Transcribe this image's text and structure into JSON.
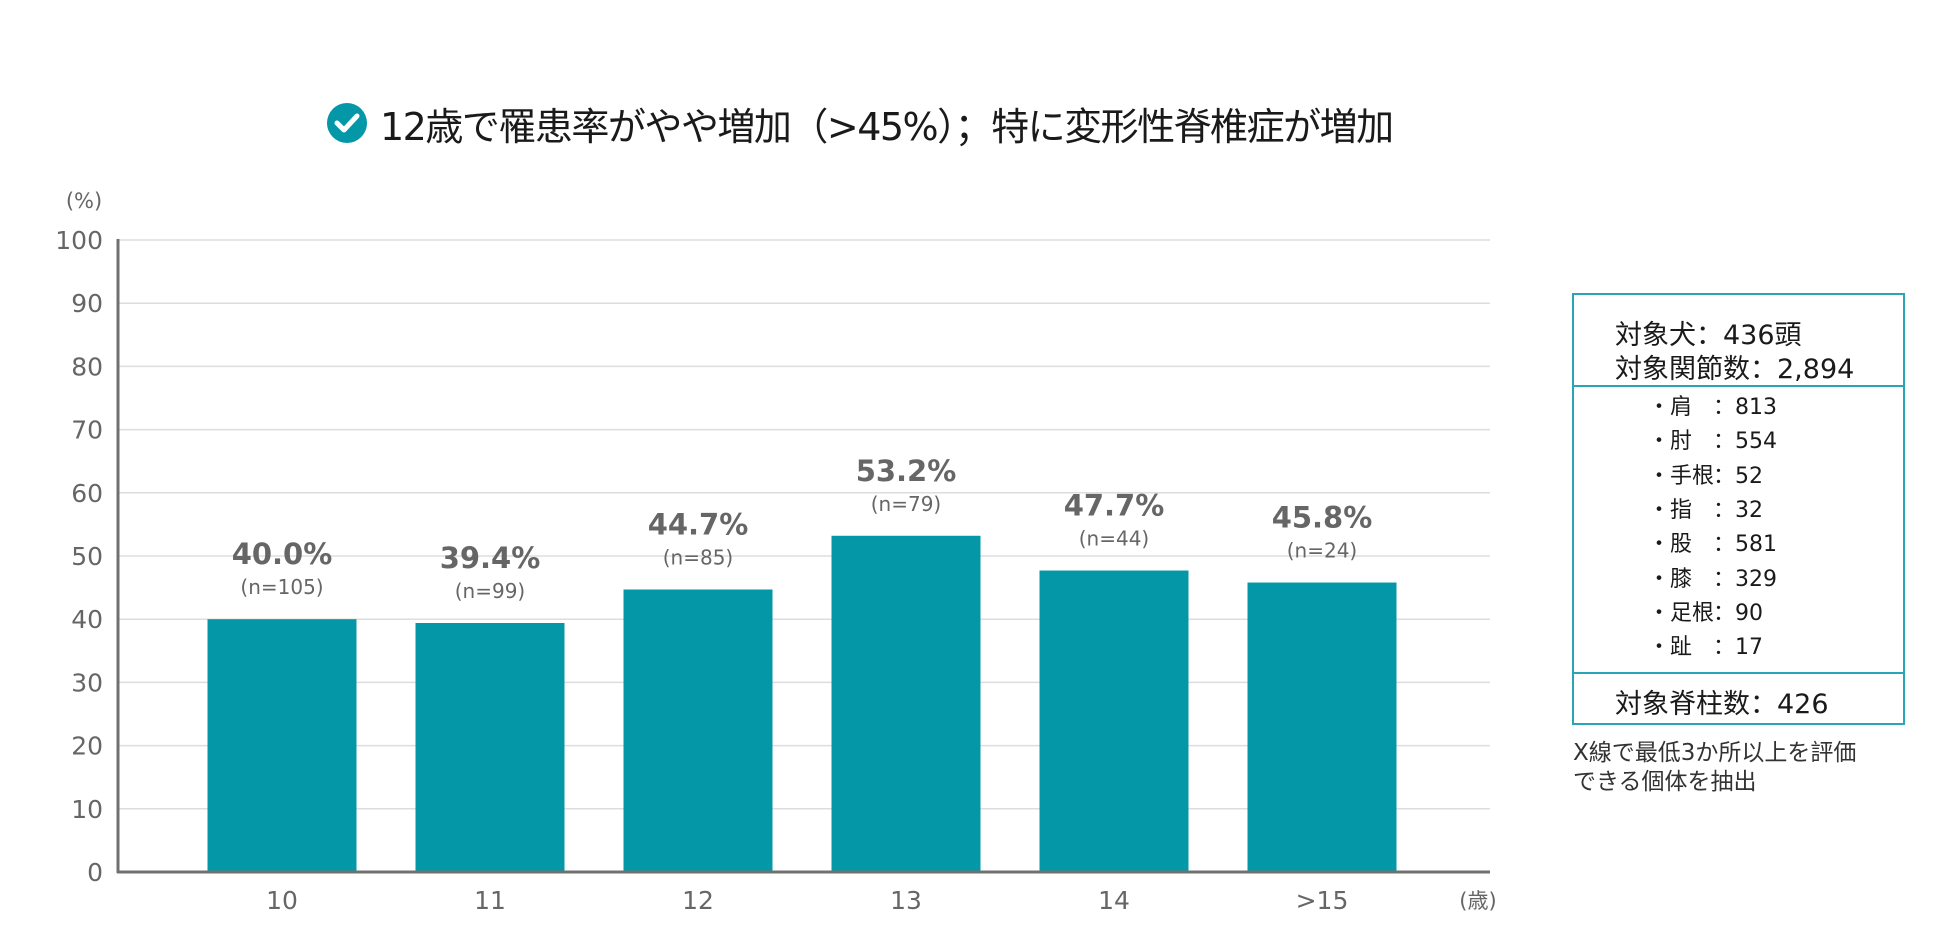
{
  "header": {
    "icon": "check-circle-icon",
    "title": "12歳で罹患率がやや増加（>45%）；特に変形性脊椎症が増加"
  },
  "colors": {
    "bar": "#0397a8",
    "accent": "#2aa5b5",
    "label": "#666666",
    "grid": "#dddddd",
    "axis": "#707070"
  },
  "chart_data": {
    "type": "bar",
    "title": "12歳で罹患率がやや増加（>45%）；特に変形性脊椎症が増加",
    "ylabel": "(%)",
    "xlabel": "(歳)",
    "ylim": [
      0,
      100
    ],
    "yticks": [
      0,
      10,
      20,
      30,
      40,
      50,
      60,
      70,
      80,
      90,
      100
    ],
    "grid": true,
    "categories": [
      "10",
      "11",
      "12",
      "13",
      "14",
      ">15"
    ],
    "values": [
      40.0,
      39.4,
      44.7,
      53.2,
      47.7,
      45.8
    ],
    "value_labels": [
      "40.0%",
      "39.4%",
      "44.7%",
      "53.2%",
      "47.7%",
      "45.8%"
    ],
    "n_labels": [
      "(n=105)",
      "(n=99)",
      "(n=85)",
      "(n=79)",
      "(n=44)",
      "(n=24)"
    ]
  },
  "info_box": {
    "dogs": "対象犬：436頭",
    "joints": "対象関節数：2,894",
    "items": [
      {
        "name": "・肩",
        "value": "：813"
      },
      {
        "name": "・肘",
        "value": "：554"
      },
      {
        "name": "・手根",
        "value": "：52"
      },
      {
        "name": "・指",
        "value": "：32"
      },
      {
        "name": "・股",
        "value": "：581"
      },
      {
        "name": "・膝",
        "value": "：329"
      },
      {
        "name": "・足根",
        "value": "：90"
      },
      {
        "name": "・趾",
        "value": "：17"
      }
    ],
    "spine": "対象脊柱数：426"
  },
  "footnote": [
    "X線で最低3か所以上を評価",
    "できる個体を抽出"
  ]
}
